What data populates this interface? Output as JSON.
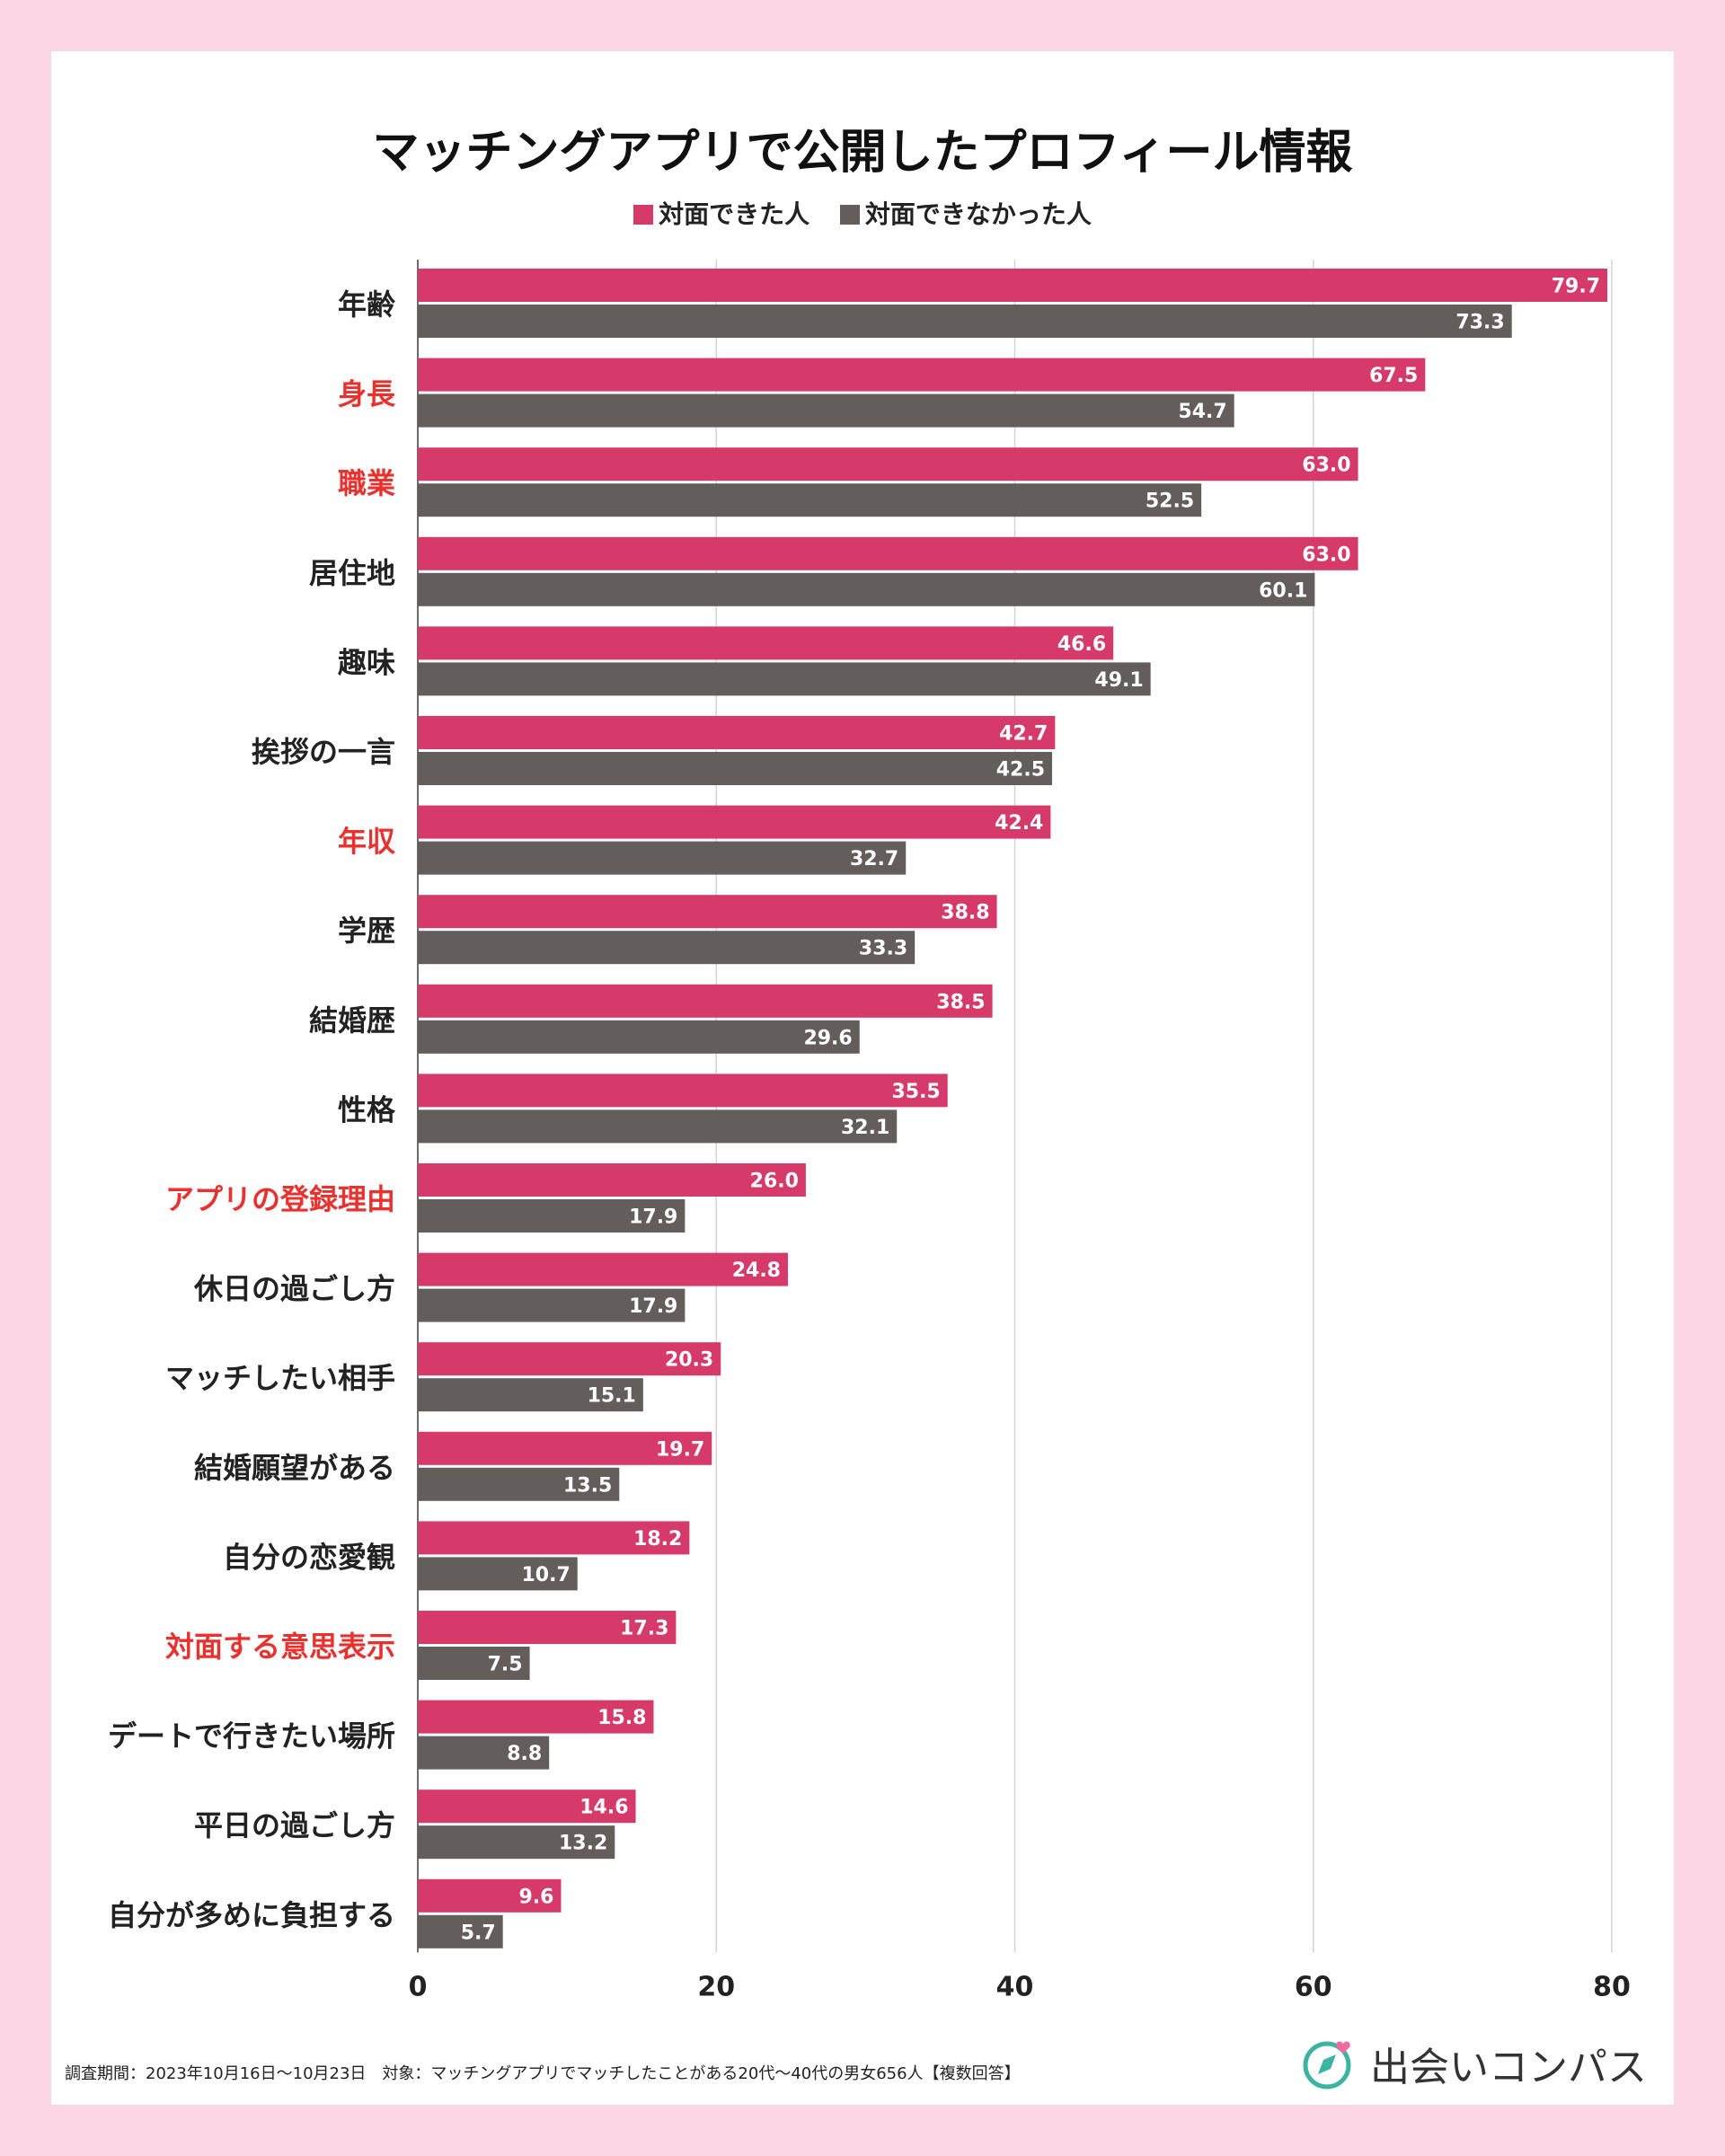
{
  "chart_data": {
    "type": "bar",
    "orientation": "horizontal",
    "title": "マッチングアプリで公開したプロフィール情報",
    "categories": [
      "年齢",
      "身長",
      "職業",
      "居住地",
      "趣味",
      "挨拶の一言",
      "年収",
      "学歴",
      "結婚歴",
      "性格",
      "アプリの登録理由",
      "休日の過ごし方",
      "マッチしたい相手",
      "結婚願望がある",
      "自分の恋愛観",
      "対面する意思表示",
      "デートで行きたい場所",
      "平日の過ごし方",
      "自分が多めに負担する"
    ],
    "highlighted_categories": [
      "身長",
      "職業",
      "年収",
      "アプリの登録理由",
      "対面する意思表示"
    ],
    "series": [
      {
        "name": "対面できた人",
        "color": "#d63a6a",
        "values": [
          79.7,
          67.5,
          63.0,
          63.0,
          46.6,
          42.7,
          42.4,
          38.8,
          38.5,
          35.5,
          26.0,
          24.8,
          20.3,
          19.7,
          18.2,
          17.3,
          15.8,
          14.6,
          9.6
        ]
      },
      {
        "name": "対面できなかった人",
        "color": "#635e5c",
        "values": [
          73.3,
          54.7,
          52.5,
          60.1,
          49.1,
          42.5,
          32.7,
          33.3,
          29.6,
          32.1,
          17.9,
          17.9,
          15.1,
          13.5,
          10.7,
          7.5,
          8.8,
          13.2,
          5.7
        ]
      }
    ],
    "xlim": [
      0,
      80
    ],
    "xticks": [
      0,
      20,
      40,
      60,
      80
    ],
    "grid": true,
    "legend_position": "top-center",
    "label_color": "#222222",
    "highlight_color": "#e8322f"
  },
  "footnote": "調査期間：2023年10月16日〜10月23日　対象：マッチングアプリでマッチしたことがある20代〜40代の男女656人【複数回答】",
  "brand": {
    "name": "出会いコンパス",
    "icon": "compass-heart-icon"
  }
}
